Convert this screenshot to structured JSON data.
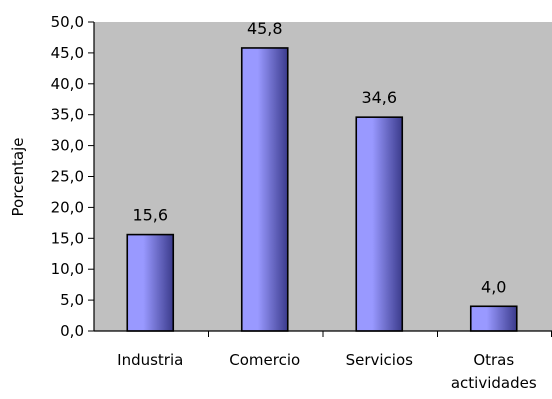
{
  "chart_data": {
    "type": "bar",
    "title": "",
    "xlabel": "",
    "ylabel": "Porcentaje",
    "ylim": [
      0,
      50
    ],
    "ytick_step": 5,
    "ytick_labels": [
      "0,0",
      "5,0",
      "10,0",
      "15,0",
      "20,0",
      "25,0",
      "30,0",
      "35,0",
      "40,0",
      "45,0",
      "50,0"
    ],
    "categories": [
      [
        "Industria"
      ],
      [
        "Comercio"
      ],
      [
        "Servicios"
      ],
      [
        "Otras",
        "actividades"
      ]
    ],
    "values": [
      15.6,
      45.8,
      34.6,
      4.0
    ],
    "value_labels": [
      "15,6",
      "45,8",
      "34,6",
      "4,0"
    ],
    "grid": false,
    "legend": "none",
    "colors": {
      "plot_background": "#c0c0c0",
      "bar_light": "#9999ff",
      "bar_dark": "#3b3b8c"
    }
  }
}
